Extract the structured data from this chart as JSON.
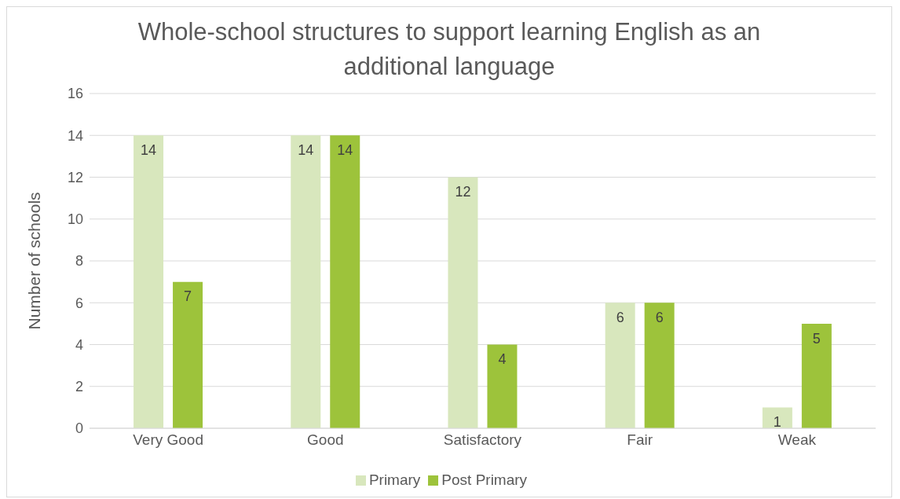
{
  "chart_data": {
    "type": "bar",
    "title": "Whole-school structures to support learning English as an additional language",
    "ylabel": "Number of schools",
    "categories": [
      "Very Good",
      "Good",
      "Satisfactory",
      "Fair",
      "Weak"
    ],
    "series": [
      {
        "name": "Primary",
        "color": "#d8e7bd",
        "values": [
          14,
          14,
          12,
          6,
          1
        ]
      },
      {
        "name": "Post Primary",
        "color": "#9dc33b",
        "values": [
          7,
          14,
          4,
          6,
          5
        ]
      }
    ],
    "ylim": [
      0,
      16
    ],
    "yticks": [
      0,
      2,
      4,
      6,
      8,
      10,
      12,
      14,
      16
    ],
    "grid": "y",
    "legend": "bottom",
    "data_labels": true
  }
}
